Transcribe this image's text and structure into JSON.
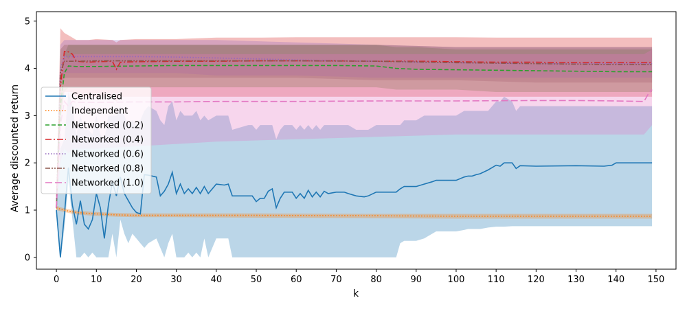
{
  "chart_data": {
    "type": "line",
    "xlabel": "k",
    "ylabel": "Average discounted return",
    "xlim": [
      -5,
      155
    ],
    "ylim": [
      -0.25,
      5.2
    ],
    "xticks": [
      0,
      10,
      20,
      30,
      40,
      50,
      60,
      70,
      80,
      90,
      100,
      110,
      120,
      130,
      140,
      150
    ],
    "yticks": [
      0,
      1,
      2,
      3,
      4,
      5
    ],
    "legend_position": "center-left",
    "series": [
      {
        "name": "Centralised",
        "color": "#1f77b4",
        "dash": "solid",
        "x": [
          0,
          1,
          2,
          3,
          4,
          5,
          6,
          7,
          8,
          9,
          10,
          11,
          12,
          13,
          14,
          15,
          16,
          17,
          18,
          19,
          20,
          21,
          22,
          23,
          25,
          26,
          27,
          28,
          29,
          30,
          31,
          32,
          33,
          34,
          35,
          36,
          37,
          38,
          40,
          42,
          43,
          44,
          48,
          49,
          50,
          51,
          52,
          53,
          54,
          55,
          56,
          57,
          58,
          59,
          60,
          61,
          62,
          63,
          64,
          65,
          66,
          67,
          68,
          70,
          72,
          73,
          75,
          77,
          78,
          80,
          85,
          86,
          87,
          90,
          92,
          94,
          95,
          100,
          102,
          103,
          104,
          105,
          106,
          108,
          110,
          111,
          112,
          114,
          115,
          116,
          120,
          130,
          137,
          139,
          140,
          149
        ],
        "y": [
          1.0,
          0.0,
          0.9,
          1.9,
          1.1,
          0.7,
          1.2,
          0.7,
          0.6,
          0.8,
          1.35,
          1.05,
          0.4,
          1.1,
          1.6,
          1.3,
          1.7,
          1.35,
          1.2,
          1.05,
          0.95,
          0.92,
          1.75,
          1.74,
          1.7,
          1.3,
          1.4,
          1.55,
          1.8,
          1.35,
          1.55,
          1.35,
          1.45,
          1.35,
          1.48,
          1.35,
          1.5,
          1.35,
          1.55,
          1.53,
          1.55,
          1.3,
          1.3,
          1.3,
          1.18,
          1.25,
          1.25,
          1.4,
          1.45,
          1.05,
          1.25,
          1.38,
          1.38,
          1.38,
          1.25,
          1.35,
          1.25,
          1.42,
          1.28,
          1.38,
          1.28,
          1.4,
          1.35,
          1.38,
          1.38,
          1.35,
          1.3,
          1.28,
          1.3,
          1.38,
          1.38,
          1.45,
          1.5,
          1.5,
          1.55,
          1.6,
          1.63,
          1.63,
          1.7,
          1.72,
          1.72,
          1.75,
          1.77,
          1.85,
          1.95,
          1.93,
          2.0,
          2.0,
          1.88,
          1.94,
          1.93,
          1.94,
          1.93,
          1.95,
          2.0,
          2.0
        ],
        "band_low": [
          0.9,
          0.0,
          0.6,
          1.6,
          0.8,
          0.0,
          0.0,
          0.1,
          0.0,
          0.1,
          0.0,
          0.0,
          0.0,
          0.0,
          0.5,
          0.0,
          0.8,
          0.5,
          0.3,
          0.5,
          0.4,
          0.3,
          0.2,
          0.3,
          0.4,
          0.2,
          0.0,
          0.3,
          0.5,
          0.0,
          0.0,
          0.0,
          0.1,
          0.0,
          0.1,
          0.0,
          0.4,
          0.0,
          0.4,
          0.4,
          0.4,
          0.0,
          0.0,
          0.0,
          0.0,
          0.0,
          0.0,
          0.0,
          0.0,
          0.0,
          0.0,
          0.0,
          0.0,
          0.0,
          0.0,
          0.0,
          0.0,
          0.0,
          0.0,
          0.0,
          0.0,
          0.0,
          0.0,
          0.0,
          0.0,
          0.0,
          0.0,
          0.0,
          0.0,
          0.0,
          0.0,
          0.3,
          0.35,
          0.35,
          0.4,
          0.5,
          0.55,
          0.55,
          0.58,
          0.6,
          0.6,
          0.6,
          0.6,
          0.63,
          0.65,
          0.65,
          0.65,
          0.66,
          0.66,
          0.66,
          0.66,
          0.66,
          0.66,
          0.66,
          0.66,
          0.66
        ],
        "band_high": [
          1.1,
          2.3,
          2.5,
          3.5,
          3.2,
          2.6,
          3.0,
          2.7,
          2.7,
          2.6,
          3.0,
          2.6,
          2.5,
          3.0,
          3.0,
          3.0,
          3.2,
          3.0,
          2.8,
          2.9,
          2.8,
          2.9,
          3.1,
          3.2,
          3.1,
          2.9,
          2.8,
          3.2,
          3.3,
          2.9,
          3.1,
          3.0,
          3.0,
          3.0,
          3.1,
          2.9,
          3.0,
          2.9,
          3.0,
          3.0,
          3.0,
          2.7,
          2.8,
          2.8,
          2.7,
          2.8,
          2.8,
          2.8,
          2.8,
          2.5,
          2.7,
          2.8,
          2.8,
          2.8,
          2.7,
          2.8,
          2.7,
          2.8,
          2.7,
          2.8,
          2.7,
          2.8,
          2.8,
          2.8,
          2.8,
          2.8,
          2.7,
          2.7,
          2.7,
          2.8,
          2.8,
          2.8,
          2.9,
          2.9,
          3.0,
          3.0,
          3.0,
          3.0,
          3.1,
          3.1,
          3.1,
          3.1,
          3.1,
          3.1,
          3.3,
          3.3,
          3.4,
          3.3,
          3.1,
          3.2,
          3.2,
          3.2,
          3.2,
          3.2,
          3.2,
          3.2
        ]
      },
      {
        "name": "Independent",
        "color": "#ff7f0e",
        "dash": "dotted",
        "x": [
          0,
          1,
          3,
          5,
          8,
          10,
          15,
          20,
          30,
          50,
          80,
          100,
          120,
          149
        ],
        "y": [
          1.05,
          1.02,
          0.98,
          0.95,
          0.93,
          0.92,
          0.9,
          0.89,
          0.89,
          0.89,
          0.88,
          0.87,
          0.87,
          0.87
        ],
        "band_low": [
          1.0,
          0.98,
          0.94,
          0.91,
          0.89,
          0.88,
          0.86,
          0.85,
          0.85,
          0.84,
          0.83,
          0.82,
          0.82,
          0.82
        ],
        "band_high": [
          1.1,
          1.06,
          1.02,
          0.99,
          0.97,
          0.96,
          0.94,
          0.93,
          0.93,
          0.93,
          0.92,
          0.92,
          0.92,
          0.92
        ]
      },
      {
        "name": "Networked (0.2)",
        "color": "#2ca02c",
        "dash": "dashed",
        "x": [
          0,
          1,
          2,
          3,
          5,
          10,
          20,
          30,
          40,
          50,
          60,
          70,
          80,
          85,
          90,
          100,
          110,
          120,
          130,
          140,
          149
        ],
        "y": [
          1.05,
          3.2,
          3.9,
          4.05,
          4.04,
          4.04,
          4.05,
          4.06,
          4.06,
          4.06,
          4.06,
          4.06,
          4.05,
          4.0,
          3.98,
          3.97,
          3.96,
          3.95,
          3.94,
          3.93,
          3.93
        ],
        "band_low": [
          1.0,
          2.9,
          3.5,
          3.6,
          3.6,
          3.6,
          3.6,
          3.6,
          3.6,
          3.6,
          3.6,
          3.6,
          3.6,
          3.55,
          3.55,
          3.55,
          3.5,
          3.5,
          3.5,
          3.5,
          3.5
        ],
        "band_high": [
          1.1,
          3.5,
          4.3,
          4.5,
          4.5,
          4.5,
          4.5,
          4.5,
          4.5,
          4.5,
          4.5,
          4.5,
          4.5,
          4.45,
          4.45,
          4.4,
          4.4,
          4.4,
          4.4,
          4.4,
          4.4
        ]
      },
      {
        "name": "Networked (0.4)",
        "color": "#d62728",
        "dash": "dashdot",
        "x": [
          0,
          1,
          2,
          3,
          4,
          5,
          8,
          10,
          14,
          15,
          16,
          20,
          30,
          40,
          50,
          60,
          70,
          80,
          90,
          100,
          110,
          120,
          130,
          140,
          149
        ],
        "y": [
          1.05,
          3.6,
          4.36,
          4.35,
          4.3,
          4.15,
          4.13,
          4.14,
          4.15,
          3.98,
          4.13,
          4.14,
          4.15,
          4.15,
          4.16,
          4.16,
          4.16,
          4.15,
          4.15,
          4.14,
          4.13,
          4.13,
          4.12,
          4.12,
          4.12
        ],
        "band_low": [
          1.0,
          3.0,
          3.5,
          3.5,
          3.5,
          3.4,
          3.4,
          3.4,
          3.4,
          3.3,
          3.4,
          3.4,
          3.4,
          3.4,
          3.4,
          3.4,
          3.4,
          3.4,
          3.4,
          3.4,
          3.4,
          3.4,
          3.4,
          3.4,
          3.4
        ],
        "band_high": [
          1.1,
          4.85,
          4.75,
          4.7,
          4.65,
          4.6,
          4.6,
          4.62,
          4.6,
          4.55,
          4.6,
          4.62,
          4.62,
          4.65,
          4.65,
          4.66,
          4.66,
          4.66,
          4.66,
          4.66,
          4.65,
          4.65,
          4.65,
          4.65,
          4.65
        ]
      },
      {
        "name": "Networked (0.6)",
        "color": "#9467bd",
        "dash": "dotted",
        "x": [
          0,
          1,
          2,
          5,
          10,
          20,
          30,
          40,
          60,
          80,
          100,
          120,
          140,
          149
        ],
        "y": [
          1.05,
          4.0,
          4.25,
          4.25,
          4.25,
          4.25,
          4.24,
          4.22,
          4.18,
          4.15,
          4.12,
          4.1,
          4.1,
          4.1
        ],
        "band_low": [
          1.0,
          3.7,
          3.9,
          3.9,
          3.9,
          3.9,
          3.9,
          3.85,
          3.85,
          3.8,
          3.8,
          3.8,
          3.8,
          3.8
        ],
        "band_high": [
          1.1,
          4.5,
          4.6,
          4.6,
          4.6,
          4.6,
          4.6,
          4.6,
          4.55,
          4.5,
          4.45,
          4.45,
          4.45,
          4.45
        ]
      },
      {
        "name": "Networked (0.8)",
        "color": "#8c564b",
        "dash": "dashdotdot",
        "x": [
          0,
          1,
          2,
          5,
          10,
          20,
          30,
          40,
          60,
          80,
          100,
          120,
          140,
          149
        ],
        "y": [
          1.05,
          3.9,
          4.15,
          4.15,
          4.16,
          4.16,
          4.16,
          4.16,
          4.16,
          4.15,
          4.12,
          4.1,
          4.08,
          4.08
        ],
        "band_low": [
          1.0,
          3.6,
          3.8,
          3.8,
          3.8,
          3.8,
          3.8,
          3.8,
          3.8,
          3.75,
          3.75,
          3.7,
          3.7,
          3.7
        ],
        "band_high": [
          1.1,
          4.4,
          4.5,
          4.5,
          4.5,
          4.5,
          4.5,
          4.5,
          4.5,
          4.5,
          4.45,
          4.45,
          4.45,
          4.45
        ]
      },
      {
        "name": "Networked (1.0)",
        "color": "#e377c2",
        "dash": "longdash",
        "x": [
          0,
          1,
          2,
          3,
          4,
          5,
          10,
          20,
          30,
          40,
          60,
          80,
          100,
          120,
          130,
          140,
          147,
          148,
          149
        ],
        "y": [
          1.05,
          2.8,
          3.3,
          3.2,
          3.3,
          3.28,
          3.28,
          3.29,
          3.29,
          3.3,
          3.3,
          3.31,
          3.31,
          3.32,
          3.32,
          3.31,
          3.3,
          3.45,
          3.55
        ],
        "band_low": [
          1.0,
          2.0,
          2.3,
          2.2,
          2.3,
          2.3,
          2.3,
          2.35,
          2.4,
          2.45,
          2.5,
          2.55,
          2.6,
          2.6,
          2.6,
          2.6,
          2.6,
          2.7,
          2.8
        ],
        "band_high": [
          1.1,
          3.8,
          4.3,
          4.2,
          4.3,
          4.3,
          4.3,
          4.3,
          4.3,
          4.3,
          4.3,
          4.3,
          4.3,
          4.3,
          4.3,
          4.3,
          4.3,
          4.35,
          4.4
        ]
      }
    ]
  }
}
